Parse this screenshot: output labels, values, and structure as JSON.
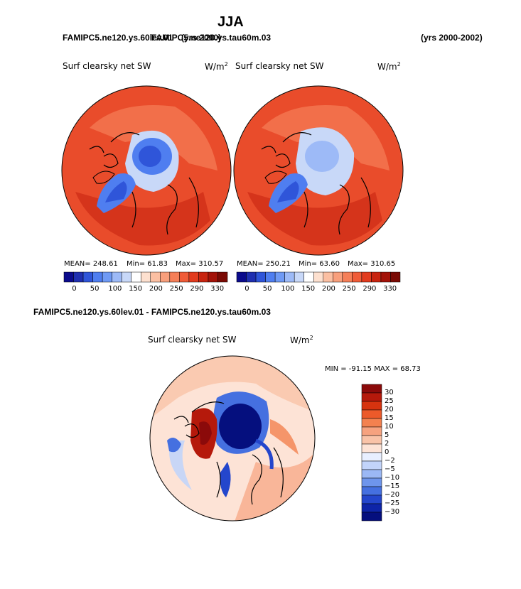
{
  "header": {
    "season": "JJA",
    "case_left": "FAMIPC5.ne120.ys.60lev.01",
    "case_overlap": "FAMIPC5.ne120.ys.tau60m.03",
    "years_left": "(yrs 2000)",
    "years_right": "(yrs 2000-2002)"
  },
  "panels": [
    {
      "title": "Surf clearsky net SW",
      "unit": "W/m",
      "unit_exp": "2",
      "mean": "MEAN= 248.61",
      "min": "Min= 61.83",
      "max": "Max= 310.57"
    },
    {
      "title": "Surf clearsky net SW",
      "unit": "W/m",
      "unit_exp": "2",
      "mean": "MEAN= 250.21",
      "min": "Min= 63.60",
      "max": "Max= 310.65"
    }
  ],
  "diff": {
    "heading": "FAMIPC5.ne120.ys.60lev.01 - FAMIPC5.ne120.ys.tau60m.03",
    "title": "Surf clearsky net SW",
    "unit": "W/m",
    "unit_exp": "2",
    "minmax": "MIN = -91.15 MAX = 68.73"
  },
  "chart_data": [
    {
      "type": "heatmap",
      "projection": "north-polar-stereographic",
      "title": "Surf clearsky net SW",
      "units": "W/m2",
      "stats": {
        "mean": 248.61,
        "min": 61.83,
        "max": 310.57
      },
      "colorbar_levels": [
        0,
        50,
        100,
        150,
        200,
        250,
        290,
        330
      ],
      "colors": [
        "#0b0b8c",
        "#1f2fb0",
        "#2f55d9",
        "#4f7ef0",
        "#6f9af5",
        "#9dbaf7",
        "#c8d8f8",
        "#ffffff",
        "#fde0cf",
        "#fbbfa2",
        "#f89f7c",
        "#f57f58",
        "#f05c38",
        "#e23b1e",
        "#c82410",
        "#a31208",
        "#7a0a04"
      ]
    },
    {
      "type": "heatmap",
      "projection": "north-polar-stereographic",
      "title": "Surf clearsky net SW",
      "units": "W/m2",
      "stats": {
        "mean": 250.21,
        "min": 63.6,
        "max": 310.65
      },
      "colorbar_levels": [
        0,
        50,
        100,
        150,
        200,
        250,
        290,
        330
      ],
      "colors": [
        "#0b0b8c",
        "#1f2fb0",
        "#2f55d9",
        "#4f7ef0",
        "#6f9af5",
        "#9dbaf7",
        "#c8d8f8",
        "#ffffff",
        "#fde0cf",
        "#fbbfa2",
        "#f89f7c",
        "#f57f58",
        "#f05c38",
        "#e23b1e",
        "#c82410",
        "#a31208",
        "#7a0a04"
      ]
    },
    {
      "type": "heatmap",
      "projection": "north-polar-stereographic",
      "title": "Surf clearsky net SW",
      "units": "W/m2",
      "stats": {
        "min": -91.15,
        "max": 68.73
      },
      "colorbar_levels": [
        "30",
        "25",
        "20",
        "15",
        "10",
        "5",
        "2",
        "0",
        "−2",
        "−5",
        "−10",
        "−15",
        "−20",
        "−25",
        "−30"
      ],
      "colors": [
        "#8b0a0a",
        "#b5190b",
        "#d6330f",
        "#ec5a2a",
        "#f3814f",
        "#f6a27f",
        "#f9c3a8",
        "#fde3d6",
        "#e8efff",
        "#c2d4fa",
        "#9bb8f5",
        "#6e95ec",
        "#4570e0",
        "#2446cc",
        "#0e24a8",
        "#050f7e"
      ]
    }
  ]
}
